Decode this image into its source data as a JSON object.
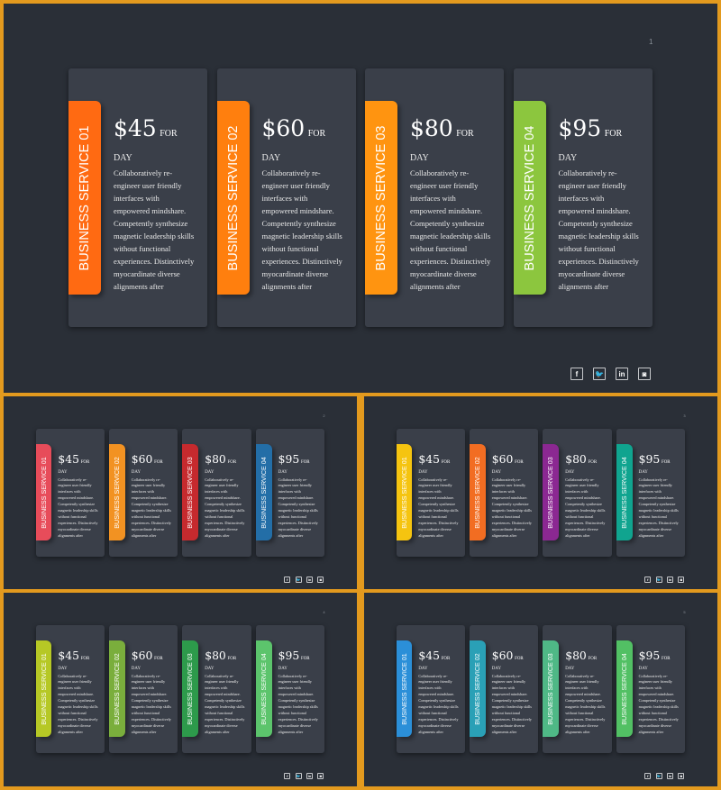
{
  "cards": [
    {
      "title": "BUSINESS SERVICE 01",
      "price": "$45",
      "for": "FOR",
      "per": "DAY"
    },
    {
      "title": "BUSINESS SERVICE 02",
      "price": "$60",
      "for": "FOR",
      "per": "DAY"
    },
    {
      "title": "BUSINESS SERVICE 03",
      "price": "$80",
      "for": "FOR",
      "per": "DAY"
    },
    {
      "title": "BUSINESS SERVICE 04",
      "price": "$95",
      "for": "FOR",
      "per": "DAY"
    }
  ],
  "description_lines": [
    "Collaboratively re-",
    "engineer user friendly",
    "interfaces with",
    "empowered mindshare.",
    "Competently synthesize",
    "magnetic leadership skills",
    "without functional",
    "experiences. Distinctively",
    "myocardinate diverse",
    "alignments after"
  ],
  "social_icons": [
    {
      "icon": "facebook-icon",
      "glyph": "f"
    },
    {
      "icon": "twitter-icon",
      "glyph": "🐦"
    },
    {
      "icon": "linkedin-icon",
      "glyph": "in"
    },
    {
      "icon": "instagram-icon",
      "glyph": "◙"
    }
  ],
  "slides": [
    {
      "number": "1",
      "tab_colors": [
        "#ff6a12",
        "#ff7f0e",
        "#ff9410",
        "#8cc63e"
      ]
    },
    {
      "number": "2",
      "tab_colors": [
        "#e74c5a",
        "#f29222",
        "#c62a2e",
        "#236ea7"
      ]
    },
    {
      "number": "3",
      "tab_colors": [
        "#f5c410",
        "#f26d22",
        "#8b2892",
        "#10a48f"
      ]
    },
    {
      "number": "4",
      "tab_colors": [
        "#b6c825",
        "#7aae3c",
        "#2d9a4b",
        "#5cc46c"
      ]
    },
    {
      "number": "5",
      "tab_colors": [
        "#2b8fd8",
        "#2aa0b6",
        "#4fb886",
        "#52c064"
      ]
    }
  ]
}
